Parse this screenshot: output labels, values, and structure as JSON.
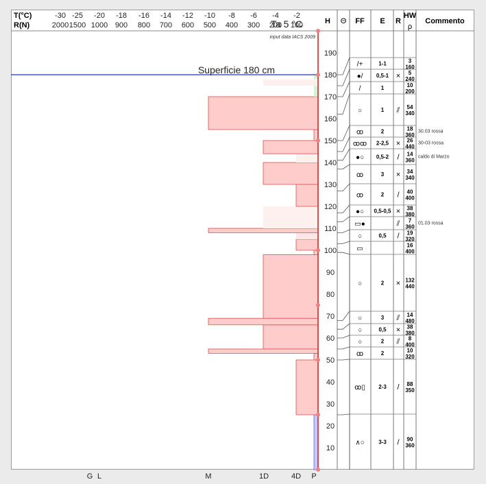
{
  "header": {
    "t_label": "T(°C)",
    "r_label": "R(N)",
    "t_ticks": [
      "-30",
      "-25",
      "-20",
      "-18",
      "-16",
      "-14",
      "-12",
      "-10",
      "-8",
      "-6",
      "-4",
      "-2"
    ],
    "r_ticks": [
      "2000",
      "1500",
      "1000",
      "900",
      "800",
      "700",
      "600",
      "500",
      "400",
      "300",
      "200",
      "100"
    ],
    "columns": {
      "h": "H",
      "theta": "Θ",
      "ff": "FF",
      "e": "E",
      "r": "R",
      "hw": "HW",
      "rho": "ρ",
      "commento": "Commento"
    }
  },
  "annotations": {
    "source": "input data IACS 2009",
    "surface": "Superficie  180 cm",
    "ta": "Ta  5 °C"
  },
  "bottom_labels": [
    "G",
    "L",
    "M",
    "1D",
    "4D",
    "P"
  ],
  "height_ticks": [
    "10",
    "20",
    "30",
    "40",
    "50",
    "60",
    "70",
    "80",
    "90",
    "100",
    "110",
    "120",
    "130",
    "140",
    "150",
    "160",
    "170",
    "180",
    "190"
  ],
  "layers": [
    {
      "top": 180,
      "bottom": 175,
      "e": "1-1",
      "hw": "3",
      "rho": "160",
      "r_sym": "",
      "ff": "/+",
      "comment": ""
    },
    {
      "top": 175,
      "bottom": 170,
      "e": "0,5-1",
      "hw": "5",
      "rho": "240",
      "r_sym": "×",
      "ff": "●/",
      "comment": ""
    },
    {
      "top": 170,
      "bottom": 162,
      "e": "1",
      "hw": "10",
      "rho": "200",
      "r_sym": "",
      "ff": "/",
      "comment": ""
    },
    {
      "top": 162,
      "bottom": 150,
      "e": "1",
      "hw": "54",
      "rho": "340",
      "r_sym": "⫽",
      "ff": "○",
      "comment": ""
    },
    {
      "top": 150,
      "bottom": 145,
      "e": "2",
      "hw": "18",
      "rho": "360",
      "r_sym": "",
      "ff": "ꝏ",
      "comment": "30.03 rossa"
    },
    {
      "top": 145,
      "bottom": 141,
      "e": "2-2,5",
      "hw": "26",
      "rho": "440",
      "r_sym": "×",
      "ff": "ꝏꝏ",
      "comment": "30-03 rossa"
    },
    {
      "top": 141,
      "bottom": 137,
      "e": "0,5-2",
      "hw": "14",
      "rho": "360",
      "r_sym": "/",
      "ff": "●○",
      "comment": "caldo di Marzo"
    },
    {
      "top": 137,
      "bottom": 127,
      "e": "3",
      "hw": "34",
      "rho": "340",
      "r_sym": "×",
      "ff": "ꝏ",
      "comment": ""
    },
    {
      "top": 127,
      "bottom": 117,
      "e": "2",
      "hw": "40",
      "rho": "400",
      "r_sym": "/",
      "ff": "ꝏ",
      "comment": ""
    },
    {
      "top": 117,
      "bottom": 113,
      "e": "0,5-0,5",
      "hw": "38",
      "rho": "380",
      "r_sym": "×",
      "ff": "●○",
      "comment": ""
    },
    {
      "top": 113,
      "bottom": 108,
      "e": "",
      "hw": "7",
      "rho": "360",
      "r_sym": "⫽",
      "ff": "▭●",
      "comment": "01.03 rossa"
    },
    {
      "top": 108,
      "bottom": 103,
      "e": "0,5",
      "hw": "19",
      "rho": "320",
      "r_sym": "/",
      "ff": "○",
      "comment": ""
    },
    {
      "top": 103,
      "bottom": 99,
      "e": "",
      "hw": "16",
      "rho": "400",
      "r_sym": "",
      "ff": "▭",
      "comment": ""
    },
    {
      "top": 99,
      "bottom": 68,
      "e": "2",
      "hw": "132",
      "rho": "440",
      "r_sym": "×",
      "ff": "○",
      "comment": ""
    },
    {
      "top": 68,
      "bottom": 64,
      "e": "3",
      "hw": "14",
      "rho": "480",
      "r_sym": "⫽",
      "ff": "○",
      "comment": ""
    },
    {
      "top": 64,
      "bottom": 60,
      "e": "0,5",
      "hw": "38",
      "rho": "380",
      "r_sym": "×",
      "ff": "○",
      "comment": ""
    },
    {
      "top": 60,
      "bottom": 55,
      "e": "2",
      "hw": "8",
      "rho": "400",
      "r_sym": "⫽",
      "ff": "○",
      "comment": ""
    },
    {
      "top": 55,
      "bottom": 50,
      "e": "2",
      "hw": "10",
      "rho": "320",
      "r_sym": "",
      "ff": "ꝏ",
      "comment": ""
    },
    {
      "top": 50,
      "bottom": 25,
      "e": "2-3",
      "hw": "88",
      "rho": "350",
      "r_sym": "/",
      "ff": "ꝏ▯",
      "comment": ""
    },
    {
      "top": 25,
      "bottom": 0,
      "e": "3-3",
      "hw": "90",
      "rho": "360",
      "r_sym": "/",
      "ff": "∧○",
      "comment": ""
    }
  ],
  "chart_data": {
    "type": "bar",
    "orientation": "horizontal",
    "x_axis_top": "T(°C)",
    "x_axis_bottom_ticks": [
      "G",
      "L",
      "M",
      "1D",
      "4D",
      "P"
    ],
    "ylabel": "H",
    "ylim": [
      0,
      200
    ],
    "surface_height": 180,
    "air_temperature_c": 5,
    "hardness_bars": [
      {
        "bottom": 0,
        "top": 25,
        "hardness": "P",
        "color": "#c8c8ff"
      },
      {
        "bottom": 25,
        "top": 50,
        "hardness": "4D",
        "color": "#ffcccc"
      },
      {
        "bottom": 50,
        "top": 53,
        "hardness": "P",
        "color": "#ffcccc"
      },
      {
        "bottom": 53,
        "top": 55,
        "hardness": "M",
        "color": "#ffcccc"
      },
      {
        "bottom": 55,
        "top": 66,
        "hardness": "1D",
        "color": "#ffcccc"
      },
      {
        "bottom": 66,
        "top": 69,
        "hardness": "M",
        "color": "#ffcccc"
      },
      {
        "bottom": 69,
        "top": 98,
        "hardness": "1D",
        "color": "#ffcccc"
      },
      {
        "bottom": 98,
        "top": 100,
        "hardness": "P",
        "color": "#ffcccc"
      },
      {
        "bottom": 100,
        "top": 105,
        "hardness": "4D",
        "color": "#ffcccc"
      },
      {
        "bottom": 105,
        "top": 108,
        "hardness": "4D",
        "color": "#ffe5e5"
      },
      {
        "bottom": 108,
        "top": 110,
        "hardness": "M",
        "color": "#ffcccc"
      },
      {
        "bottom": 110,
        "top": 120,
        "hardness": "1D",
        "color": "#fff0f0"
      },
      {
        "bottom": 120,
        "top": 130,
        "hardness": "4D",
        "color": "#ffcccc"
      },
      {
        "bottom": 130,
        "top": 140,
        "hardness": "1D",
        "color": "#ffcccc"
      },
      {
        "bottom": 140,
        "top": 144,
        "hardness": "4D",
        "color": "#fff0f0"
      },
      {
        "bottom": 144,
        "top": 150,
        "hardness": "1D",
        "color": "#ffcccc"
      },
      {
        "bottom": 150,
        "top": 155,
        "hardness": "P",
        "color": "#ffcccc"
      },
      {
        "bottom": 155,
        "top": 170,
        "hardness": "M",
        "color": "#ffcccc"
      },
      {
        "bottom": 170,
        "top": 175,
        "hardness": "P",
        "color": "#d8f0d8"
      },
      {
        "bottom": 175,
        "top": 178,
        "hardness": "1D",
        "color": "#fff0f0"
      },
      {
        "bottom": 178,
        "top": 180,
        "hardness": "P",
        "color": "#d8f0d8"
      }
    ],
    "temperature_profile": [
      {
        "h": 0,
        "t": 0
      },
      {
        "h": 25,
        "t": 0
      },
      {
        "h": 50,
        "t": 0
      },
      {
        "h": 75,
        "t": 0
      },
      {
        "h": 100,
        "t": 0
      },
      {
        "h": 150,
        "t": 0
      },
      {
        "h": 180,
        "t": 0
      },
      {
        "h": 200,
        "t": 0
      }
    ]
  },
  "colors": {
    "bar_red": "#ffcccc",
    "bar_red_stroke": "#e05050",
    "bar_blue": "#c8c8ff",
    "bar_green": "#d8f0d8",
    "temp_line": "#e02020",
    "surface_line": "#2233bb"
  }
}
